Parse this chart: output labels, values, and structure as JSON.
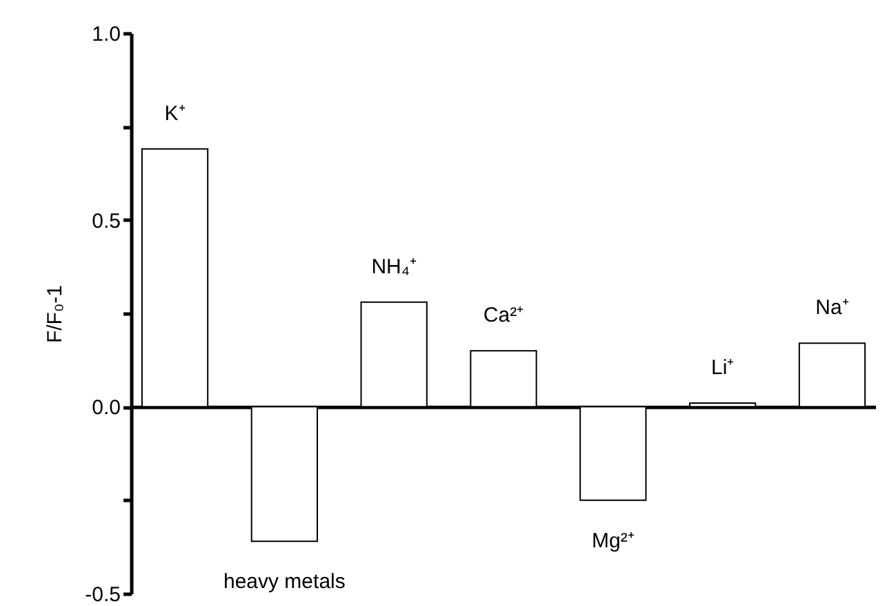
{
  "chart_data": {
    "type": "bar",
    "ylabel": "F/F₀-1",
    "categories": [
      "K⁺",
      "heavy metals",
      "NH₄⁺",
      "Ca²⁺",
      "Mg²⁺",
      "Li⁺",
      "Na⁺"
    ],
    "values": [
      0.69,
      -0.36,
      0.28,
      0.15,
      -0.25,
      0.01,
      0.17
    ],
    "color": "#ffffff",
    "ylim": [
      -0.5,
      1.0
    ],
    "yticks": [
      {
        "value": -0.5,
        "label": "-0.5"
      },
      {
        "value": -0.25,
        "label": null
      },
      {
        "value": 0,
        "label": "0.0"
      },
      {
        "value": 0.25,
        "label": null
      },
      {
        "value": 0.5,
        "label": "0.5"
      },
      {
        "value": 0.75,
        "label": null
      },
      {
        "value": 1,
        "label": "1.0"
      }
    ],
    "tick_labels": "y"
  }
}
